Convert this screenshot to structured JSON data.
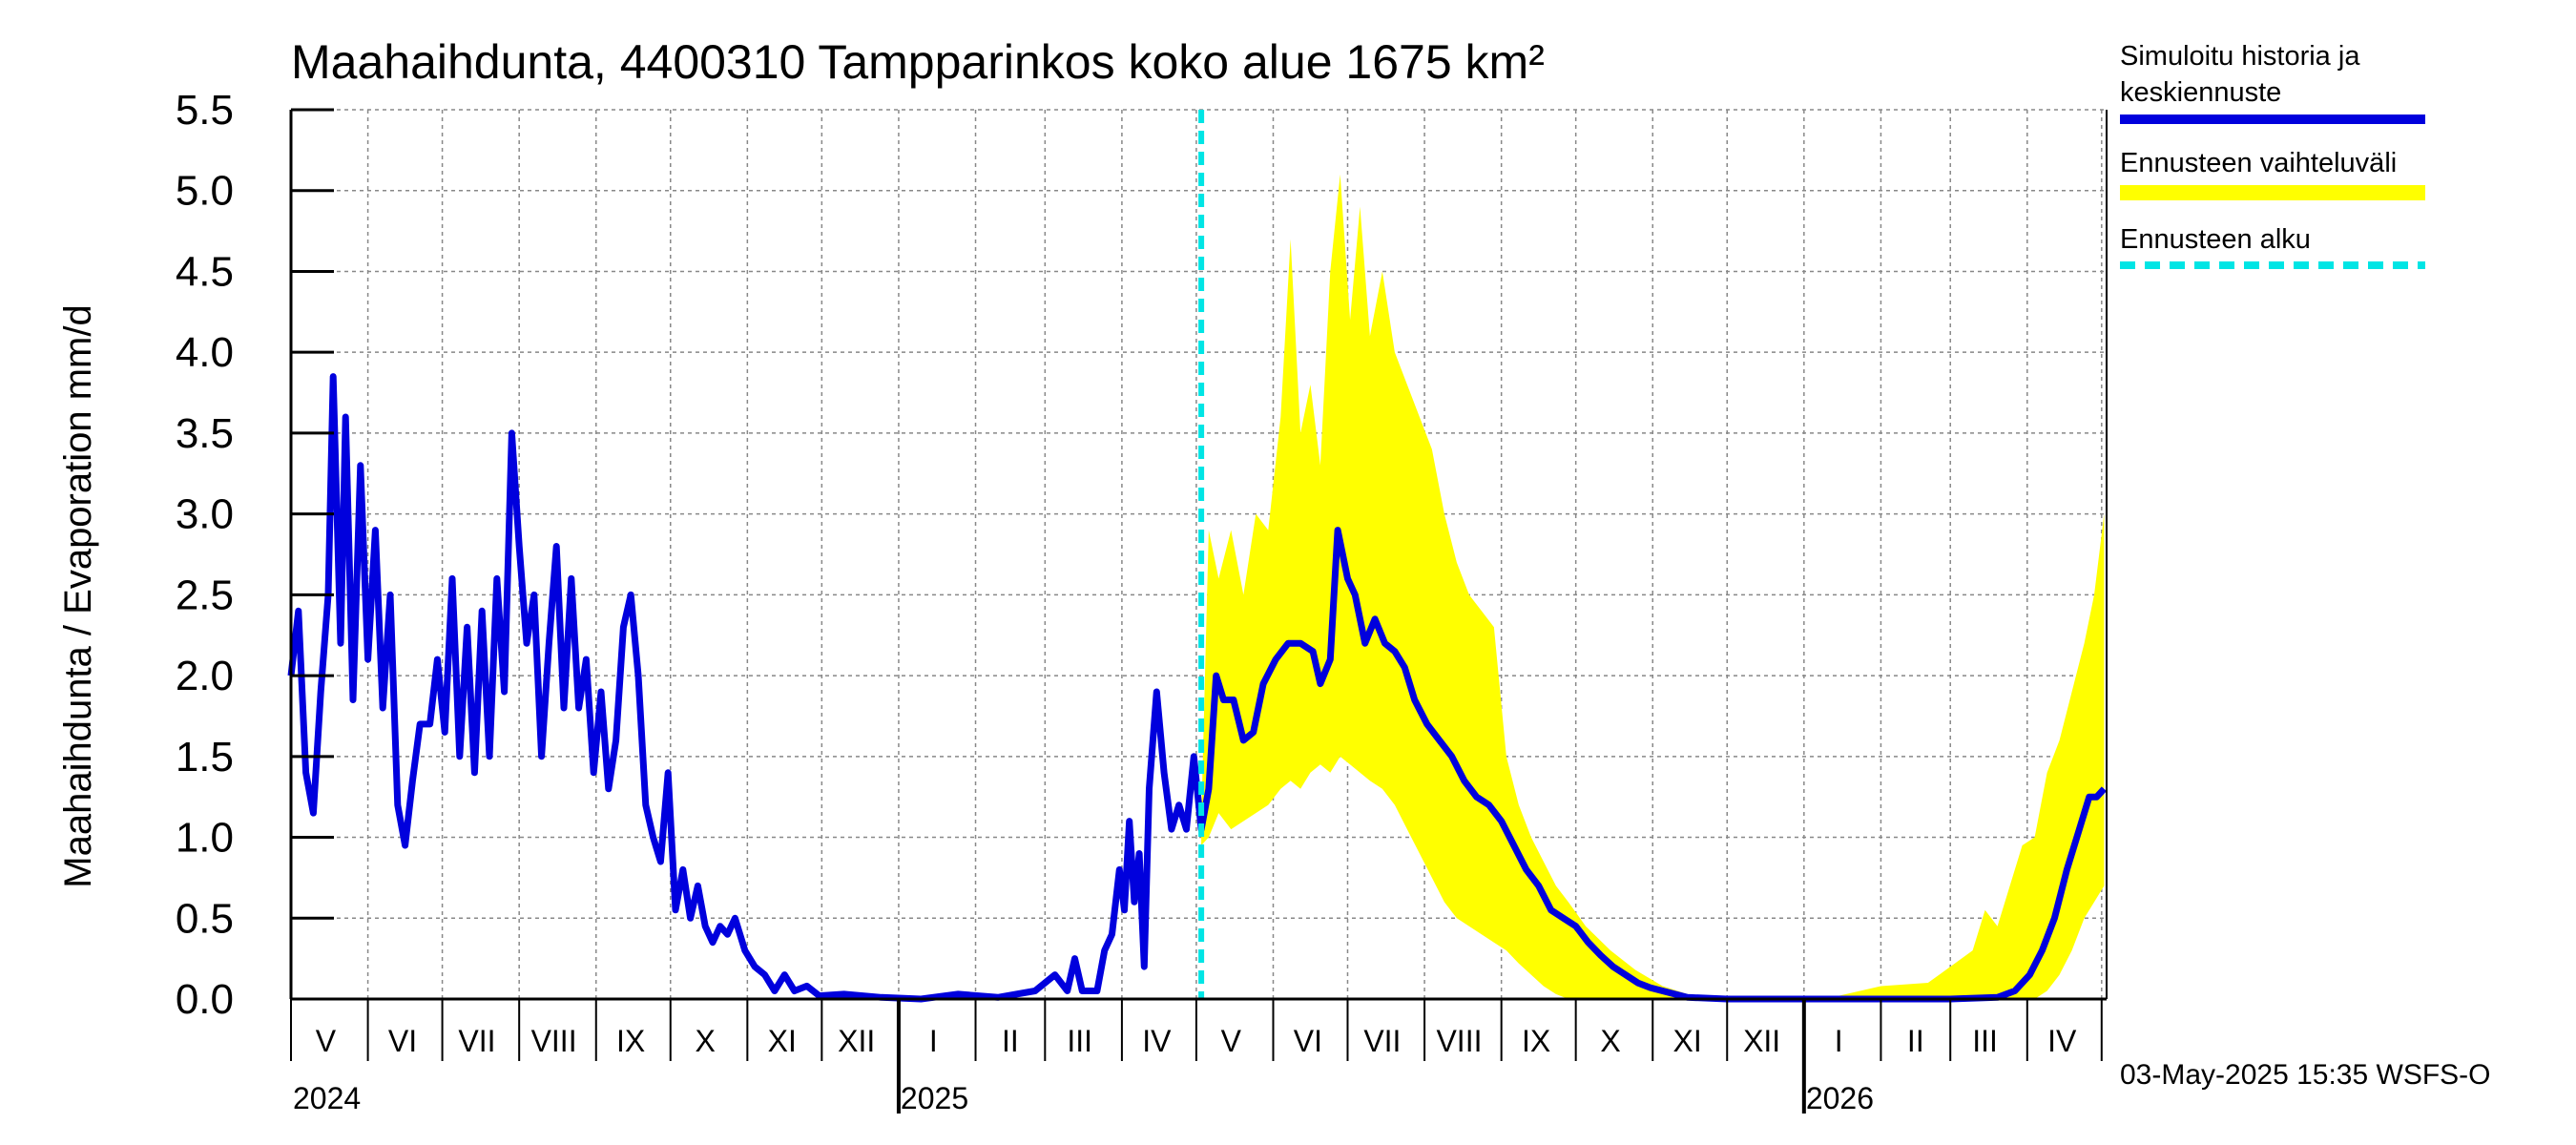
{
  "chart_data": {
    "type": "line",
    "title": "Maahaihdunta, 4400310 Tampparinkos koko alue 1675 km²",
    "ylabel": "Maahaihdunta / Evaporation   mm/d",
    "xlabel": "",
    "ylim": [
      0,
      5.5
    ],
    "yticks": [
      "0.0",
      "0.5",
      "1.0",
      "1.5",
      "2.0",
      "2.5",
      "3.0",
      "3.5",
      "4.0",
      "4.5",
      "5.0",
      "5.5"
    ],
    "x_start": "2024-05-01",
    "x_end": "2026-05-03",
    "month_labels": [
      {
        "label": "V",
        "date": "2024-05-15"
      },
      {
        "label": "VI",
        "date": "2024-06-15"
      },
      {
        "label": "VII",
        "date": "2024-07-15"
      },
      {
        "label": "VIII",
        "date": "2024-08-15"
      },
      {
        "label": "IX",
        "date": "2024-09-15"
      },
      {
        "label": "X",
        "date": "2024-10-15"
      },
      {
        "label": "XI",
        "date": "2024-11-15"
      },
      {
        "label": "XII",
        "date": "2024-12-15"
      },
      {
        "label": "I",
        "date": "2025-01-15"
      },
      {
        "label": "II",
        "date": "2025-02-15"
      },
      {
        "label": "III",
        "date": "2025-03-15"
      },
      {
        "label": "IV",
        "date": "2025-04-15"
      },
      {
        "label": "V",
        "date": "2025-05-15"
      },
      {
        "label": "VI",
        "date": "2025-06-15"
      },
      {
        "label": "VII",
        "date": "2025-07-15"
      },
      {
        "label": "VIII",
        "date": "2025-08-15"
      },
      {
        "label": "IX",
        "date": "2025-09-15"
      },
      {
        "label": "X",
        "date": "2025-10-15"
      },
      {
        "label": "XI",
        "date": "2025-11-15"
      },
      {
        "label": "XII",
        "date": "2025-12-15"
      },
      {
        "label": "I",
        "date": "2026-01-15"
      },
      {
        "label": "II",
        "date": "2026-02-15"
      },
      {
        "label": "III",
        "date": "2026-03-15"
      },
      {
        "label": "IV",
        "date": "2026-04-15"
      }
    ],
    "year_labels": [
      {
        "label": "2024",
        "date": "2024-05-01"
      },
      {
        "label": "2025",
        "date": "2025-01-01"
      },
      {
        "label": "2026",
        "date": "2026-01-01"
      }
    ],
    "forecast_start": "2025-05-03",
    "series": [
      {
        "name": "Simuloitu historia ja keskiennuste",
        "color": "#0000dd",
        "points": [
          [
            "2024-05-01",
            2.0
          ],
          [
            "2024-05-04",
            2.4
          ],
          [
            "2024-05-07",
            1.4
          ],
          [
            "2024-05-10",
            1.15
          ],
          [
            "2024-05-13",
            1.9
          ],
          [
            "2024-05-16",
            2.5
          ],
          [
            "2024-05-18",
            3.85
          ],
          [
            "2024-05-21",
            2.2
          ],
          [
            "2024-05-23",
            3.6
          ],
          [
            "2024-05-26",
            1.85
          ],
          [
            "2024-05-29",
            3.3
          ],
          [
            "2024-06-01",
            2.1
          ],
          [
            "2024-06-04",
            2.9
          ],
          [
            "2024-06-07",
            1.8
          ],
          [
            "2024-06-10",
            2.5
          ],
          [
            "2024-06-13",
            1.2
          ],
          [
            "2024-06-16",
            0.95
          ],
          [
            "2024-06-19",
            1.35
          ],
          [
            "2024-06-22",
            1.7
          ],
          [
            "2024-06-26",
            1.7
          ],
          [
            "2024-06-29",
            2.1
          ],
          [
            "2024-07-02",
            1.65
          ],
          [
            "2024-07-05",
            2.6
          ],
          [
            "2024-07-08",
            1.5
          ],
          [
            "2024-07-11",
            2.3
          ],
          [
            "2024-07-14",
            1.4
          ],
          [
            "2024-07-17",
            2.4
          ],
          [
            "2024-07-20",
            1.5
          ],
          [
            "2024-07-23",
            2.6
          ],
          [
            "2024-07-26",
            1.9
          ],
          [
            "2024-07-29",
            3.5
          ],
          [
            "2024-08-01",
            2.8
          ],
          [
            "2024-08-04",
            2.2
          ],
          [
            "2024-08-07",
            2.5
          ],
          [
            "2024-08-10",
            1.5
          ],
          [
            "2024-08-13",
            2.2
          ],
          [
            "2024-08-16",
            2.8
          ],
          [
            "2024-08-19",
            1.8
          ],
          [
            "2024-08-22",
            2.6
          ],
          [
            "2024-08-25",
            1.8
          ],
          [
            "2024-08-28",
            2.1
          ],
          [
            "2024-08-31",
            1.4
          ],
          [
            "2024-09-03",
            1.9
          ],
          [
            "2024-09-06",
            1.3
          ],
          [
            "2024-09-09",
            1.6
          ],
          [
            "2024-09-12",
            2.3
          ],
          [
            "2024-09-15",
            2.5
          ],
          [
            "2024-09-18",
            2.0
          ],
          [
            "2024-09-21",
            1.2
          ],
          [
            "2024-09-24",
            1.0
          ],
          [
            "2024-09-27",
            0.85
          ],
          [
            "2024-09-30",
            1.4
          ],
          [
            "2024-10-03",
            0.55
          ],
          [
            "2024-10-06",
            0.8
          ],
          [
            "2024-10-09",
            0.5
          ],
          [
            "2024-10-12",
            0.7
          ],
          [
            "2024-10-15",
            0.45
          ],
          [
            "2024-10-18",
            0.35
          ],
          [
            "2024-10-21",
            0.45
          ],
          [
            "2024-10-24",
            0.4
          ],
          [
            "2024-10-27",
            0.5
          ],
          [
            "2024-10-31",
            0.3
          ],
          [
            "2024-11-04",
            0.2
          ],
          [
            "2024-11-08",
            0.15
          ],
          [
            "2024-11-12",
            0.05
          ],
          [
            "2024-11-16",
            0.15
          ],
          [
            "2024-11-20",
            0.05
          ],
          [
            "2024-11-25",
            0.08
          ],
          [
            "2024-11-30",
            0.02
          ],
          [
            "2024-12-10",
            0.03
          ],
          [
            "2024-12-25",
            0.01
          ],
          [
            "2025-01-10",
            0.0
          ],
          [
            "2025-01-25",
            0.03
          ],
          [
            "2025-02-10",
            0.01
          ],
          [
            "2025-02-25",
            0.05
          ],
          [
            "2025-03-05",
            0.15
          ],
          [
            "2025-03-10",
            0.05
          ],
          [
            "2025-03-13",
            0.25
          ],
          [
            "2025-03-16",
            0.05
          ],
          [
            "2025-03-22",
            0.05
          ],
          [
            "2025-03-25",
            0.3
          ],
          [
            "2025-03-28",
            0.4
          ],
          [
            "2025-03-31",
            0.8
          ],
          [
            "2025-04-02",
            0.55
          ],
          [
            "2025-04-04",
            1.1
          ],
          [
            "2025-04-06",
            0.6
          ],
          [
            "2025-04-08",
            0.9
          ],
          [
            "2025-04-10",
            0.2
          ],
          [
            "2025-04-12",
            1.3
          ],
          [
            "2025-04-15",
            1.9
          ],
          [
            "2025-04-18",
            1.4
          ],
          [
            "2025-04-21",
            1.05
          ],
          [
            "2025-04-24",
            1.2
          ],
          [
            "2025-04-27",
            1.05
          ],
          [
            "2025-04-30",
            1.5
          ],
          [
            "2025-05-03",
            1.05
          ],
          [
            "2025-05-06",
            1.3
          ],
          [
            "2025-05-09",
            2.0
          ],
          [
            "2025-05-12",
            1.85
          ],
          [
            "2025-05-16",
            1.85
          ],
          [
            "2025-05-20",
            1.6
          ],
          [
            "2025-05-24",
            1.65
          ],
          [
            "2025-05-28",
            1.95
          ],
          [
            "2025-06-02",
            2.1
          ],
          [
            "2025-06-07",
            2.2
          ],
          [
            "2025-06-12",
            2.2
          ],
          [
            "2025-06-17",
            2.15
          ],
          [
            "2025-06-20",
            1.95
          ],
          [
            "2025-06-24",
            2.1
          ],
          [
            "2025-06-27",
            2.9
          ],
          [
            "2025-07-01",
            2.6
          ],
          [
            "2025-07-04",
            2.5
          ],
          [
            "2025-07-08",
            2.2
          ],
          [
            "2025-07-12",
            2.35
          ],
          [
            "2025-07-16",
            2.2
          ],
          [
            "2025-07-20",
            2.15
          ],
          [
            "2025-07-24",
            2.05
          ],
          [
            "2025-07-28",
            1.85
          ],
          [
            "2025-08-02",
            1.7
          ],
          [
            "2025-08-07",
            1.6
          ],
          [
            "2025-08-12",
            1.5
          ],
          [
            "2025-08-17",
            1.35
          ],
          [
            "2025-08-22",
            1.25
          ],
          [
            "2025-08-27",
            1.2
          ],
          [
            "2025-09-01",
            1.1
          ],
          [
            "2025-09-06",
            0.95
          ],
          [
            "2025-09-11",
            0.8
          ],
          [
            "2025-09-16",
            0.7
          ],
          [
            "2025-09-21",
            0.55
          ],
          [
            "2025-09-26",
            0.5
          ],
          [
            "2025-10-01",
            0.45
          ],
          [
            "2025-10-06",
            0.35
          ],
          [
            "2025-10-11",
            0.27
          ],
          [
            "2025-10-16",
            0.2
          ],
          [
            "2025-10-21",
            0.15
          ],
          [
            "2025-10-26",
            0.1
          ],
          [
            "2025-10-31",
            0.07
          ],
          [
            "2025-11-05",
            0.05
          ],
          [
            "2025-11-10",
            0.03
          ],
          [
            "2025-11-15",
            0.01
          ],
          [
            "2025-12-01",
            0.0
          ],
          [
            "2026-01-01",
            0.0
          ],
          [
            "2026-02-01",
            0.0
          ],
          [
            "2026-03-01",
            0.0
          ],
          [
            "2026-03-20",
            0.01
          ],
          [
            "2026-03-27",
            0.05
          ],
          [
            "2026-04-02",
            0.15
          ],
          [
            "2026-04-07",
            0.3
          ],
          [
            "2026-04-12",
            0.5
          ],
          [
            "2026-04-17",
            0.8
          ],
          [
            "2026-04-22",
            1.05
          ],
          [
            "2026-04-26",
            1.25
          ],
          [
            "2026-04-29",
            1.25
          ],
          [
            "2026-05-02",
            1.3
          ]
        ]
      },
      {
        "name": "Ennusteen vaihteluväli",
        "color": "#ffff00",
        "band": [
          [
            "2025-05-03",
            0.95,
            1.1
          ],
          [
            "2025-05-06",
            1.0,
            2.9
          ],
          [
            "2025-05-10",
            1.15,
            2.6
          ],
          [
            "2025-05-15",
            1.05,
            2.9
          ],
          [
            "2025-05-20",
            1.1,
            2.5
          ],
          [
            "2025-05-25",
            1.15,
            3.0
          ],
          [
            "2025-05-30",
            1.2,
            2.9
          ],
          [
            "2025-06-04",
            1.3,
            3.6
          ],
          [
            "2025-06-08",
            1.35,
            4.7
          ],
          [
            "2025-06-12",
            1.3,
            3.5
          ],
          [
            "2025-06-16",
            1.4,
            3.8
          ],
          [
            "2025-06-20",
            1.45,
            3.3
          ],
          [
            "2025-06-24",
            1.4,
            4.5
          ],
          [
            "2025-06-28",
            1.5,
            5.1
          ],
          [
            "2025-07-02",
            1.45,
            4.2
          ],
          [
            "2025-07-06",
            1.4,
            4.9
          ],
          [
            "2025-07-10",
            1.35,
            4.1
          ],
          [
            "2025-07-15",
            1.3,
            4.5
          ],
          [
            "2025-07-20",
            1.2,
            4.0
          ],
          [
            "2025-07-25",
            1.05,
            3.8
          ],
          [
            "2025-07-30",
            0.9,
            3.6
          ],
          [
            "2025-08-04",
            0.75,
            3.4
          ],
          [
            "2025-08-09",
            0.6,
            3.0
          ],
          [
            "2025-08-14",
            0.5,
            2.7
          ],
          [
            "2025-08-19",
            0.45,
            2.5
          ],
          [
            "2025-08-24",
            0.4,
            2.4
          ],
          [
            "2025-08-29",
            0.35,
            2.3
          ],
          [
            "2025-09-03",
            0.3,
            1.5
          ],
          [
            "2025-09-08",
            0.22,
            1.2
          ],
          [
            "2025-09-13",
            0.15,
            1.0
          ],
          [
            "2025-09-18",
            0.08,
            0.85
          ],
          [
            "2025-09-23",
            0.03,
            0.7
          ],
          [
            "2025-09-28",
            0.0,
            0.6
          ],
          [
            "2025-10-05",
            0.0,
            0.45
          ],
          [
            "2025-10-15",
            0.0,
            0.3
          ],
          [
            "2025-10-25",
            0.0,
            0.18
          ],
          [
            "2025-11-05",
            0.0,
            0.08
          ],
          [
            "2025-11-15",
            0.0,
            0.03
          ],
          [
            "2025-12-01",
            0.0,
            0.0
          ],
          [
            "2026-01-15",
            0.0,
            0.02
          ],
          [
            "2026-02-01",
            0.0,
            0.08
          ],
          [
            "2026-02-20",
            0.0,
            0.1
          ],
          [
            "2026-03-01",
            0.0,
            0.2
          ],
          [
            "2026-03-10",
            0.0,
            0.3
          ],
          [
            "2026-03-15",
            0.0,
            0.55
          ],
          [
            "2026-03-20",
            0.0,
            0.45
          ],
          [
            "2026-03-25",
            0.0,
            0.7
          ],
          [
            "2026-03-30",
            0.0,
            0.95
          ],
          [
            "2026-04-04",
            0.0,
            1.0
          ],
          [
            "2026-04-09",
            0.05,
            1.4
          ],
          [
            "2026-04-14",
            0.15,
            1.6
          ],
          [
            "2026-04-19",
            0.3,
            1.9
          ],
          [
            "2026-04-24",
            0.5,
            2.2
          ],
          [
            "2026-04-28",
            0.6,
            2.5
          ],
          [
            "2026-05-02",
            0.7,
            3.0
          ]
        ]
      }
    ],
    "grid": true,
    "legend_position": "right"
  },
  "legend": {
    "sim_line1": "Simuloitu historia ja",
    "sim_line2": "keskiennuste",
    "band": "Ennusteen vaihteluväli",
    "start": "Ennusteen alku"
  },
  "timestamp": "03-May-2025 15:35 WSFS-O",
  "colors": {
    "line": "#0000dd",
    "band": "#ffff00",
    "forecast": "#00e5e5"
  }
}
